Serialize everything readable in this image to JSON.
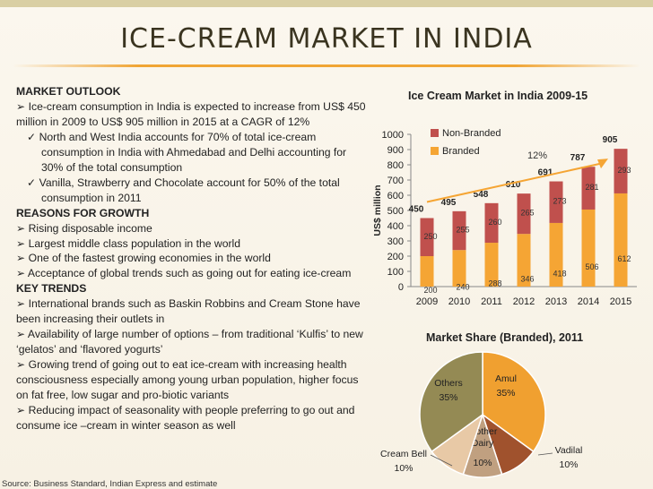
{
  "slide": {
    "title": "ICE-CREAM MARKET IN INDIA",
    "source": "Source: Business Standard, Indian Express and estimate"
  },
  "text": {
    "market_outlook_heading": "MARKET OUTLOOK",
    "mo_1": "➢ Ice-cream consumption in India is expected to increase from US$ 450 million in 2009  to US$ 905 million in 2015 at a CAGR of 12%",
    "mo_2": "✓ North and West India accounts for 70% of total ice-cream consumption in India with Ahmedabad and Delhi accounting for 30% of the total consumption",
    "mo_3": "✓ Vanilla, Strawberry and Chocolate account for 50% of the total consumption in 2011",
    "reasons_heading": "REASONS FOR GROWTH",
    "rg_1": "➢ Rising disposable income",
    "rg_2": "➢ Largest middle class population in the world",
    "rg_3": "➢ One of the fastest growing economies in the world",
    "rg_4": "➢ Acceptance of global trends such as going out for eating ice-cream",
    "trends_heading": "KEY TRENDS",
    "kt_1": "➢ International brands such as Baskin Robbins and Cream Stone have been increasing their outlets in",
    "kt_2": "➢  Availability of large number of options – from traditional ‘Kulfis’ to new ‘gelatos’ and ‘flavored yogurts’",
    "kt_3": "➢  Growing trend of going out to eat ice-cream with increasing health consciousness especially among young urban population, higher focus on fat free, low sugar and pro-biotic variants",
    "kt_4": "➢  Reducing impact of seasonality with people preferring to go out and consume ice –cream in winter season as well"
  },
  "colors": {
    "branded": "#f5a534",
    "non_branded": "#c0504d",
    "others": "#948a54",
    "amul": "#f0a030",
    "mother_dairy": "#c0a080",
    "vadilal": "#a0522d",
    "cream_bell": "#e8c9a6"
  },
  "chart_data": [
    {
      "type": "bar",
      "stacked": true,
      "title": "Ice Cream Market in India 2009-15",
      "ylabel": "US$ million",
      "xlabel": "",
      "ylim": [
        0,
        1000
      ],
      "yticks": [
        0,
        100,
        200,
        300,
        400,
        500,
        600,
        700,
        800,
        900,
        1000
      ],
      "categories": [
        "2009",
        "2010",
        "2011",
        "2012",
        "2013",
        "2014",
        "2015"
      ],
      "series": [
        {
          "name": "Branded",
          "values": [
            200,
            240,
            288,
            346,
            418,
            506,
            612
          ]
        },
        {
          "name": "Non-Branded",
          "values": [
            250,
            255,
            260,
            265,
            273,
            281,
            293
          ]
        }
      ],
      "totals": [
        450,
        495,
        548,
        610,
        691,
        787,
        905
      ],
      "legend": "top-left",
      "grid": false,
      "annotation": "12%"
    },
    {
      "type": "pie",
      "title": "Market Share (Branded), 2011",
      "slices": [
        {
          "label": "Amul",
          "value": 35,
          "text": "35%"
        },
        {
          "label": "Vadilal",
          "value": 10,
          "text": "10%"
        },
        {
          "label": "Mother Dairy",
          "value": 10,
          "text": "10%"
        },
        {
          "label": "Cream Bell",
          "value": 10,
          "text": "10%"
        },
        {
          "label": "Others",
          "value": 35,
          "text": "35%"
        }
      ]
    }
  ]
}
